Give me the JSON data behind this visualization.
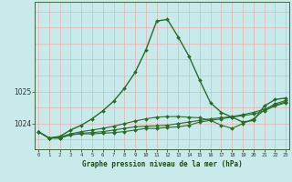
{
  "title": "Graphe pression niveau de la mer (hPa)",
  "bg_color": "#c8eaea",
  "grid_color": "#e8b0b0",
  "line_color": "#2a6b2a",
  "marker_color": "#2a6b2a",
  "x_hours": [
    0,
    1,
    2,
    3,
    4,
    5,
    6,
    7,
    8,
    9,
    10,
    11,
    12,
    13,
    14,
    15,
    16,
    17,
    18,
    19,
    20,
    21,
    22,
    23
  ],
  "series": [
    [
      1023.75,
      1023.55,
      1023.6,
      1023.8,
      1023.95,
      1024.15,
      1024.4,
      1024.7,
      1025.1,
      1025.6,
      1026.3,
      1027.2,
      1027.25,
      1026.7,
      1026.1,
      1025.35,
      1024.65,
      1024.35,
      1024.2,
      1024.05,
      1024.1,
      1024.55,
      1024.75,
      1024.8
    ],
    [
      1023.75,
      1023.55,
      1023.55,
      1023.65,
      1023.68,
      1023.68,
      1023.7,
      1023.72,
      1023.75,
      1023.8,
      1023.85,
      1023.85,
      1023.88,
      1023.9,
      1023.95,
      1024.05,
      1024.1,
      1024.15,
      1024.2,
      1024.25,
      1024.3,
      1024.4,
      1024.55,
      1024.65
    ],
    [
      1023.75,
      1023.55,
      1023.55,
      1023.65,
      1023.7,
      1023.72,
      1023.75,
      1023.8,
      1023.85,
      1023.9,
      1023.92,
      1023.93,
      1023.95,
      1024.0,
      1024.05,
      1024.1,
      1024.15,
      1024.18,
      1024.22,
      1024.28,
      1024.35,
      1024.45,
      1024.58,
      1024.68
    ],
    [
      1023.75,
      1023.55,
      1023.58,
      1023.68,
      1023.75,
      1023.8,
      1023.85,
      1023.92,
      1024.0,
      1024.08,
      1024.15,
      1024.2,
      1024.22,
      1024.22,
      1024.2,
      1024.18,
      1024.1,
      1023.95,
      1023.85,
      1024.0,
      1024.15,
      1024.42,
      1024.62,
      1024.72
    ]
  ],
  "ylim": [
    1023.2,
    1027.8
  ],
  "ylabel_ticks": [
    1024,
    1025
  ],
  "xlim": [
    -0.3,
    23.3
  ]
}
